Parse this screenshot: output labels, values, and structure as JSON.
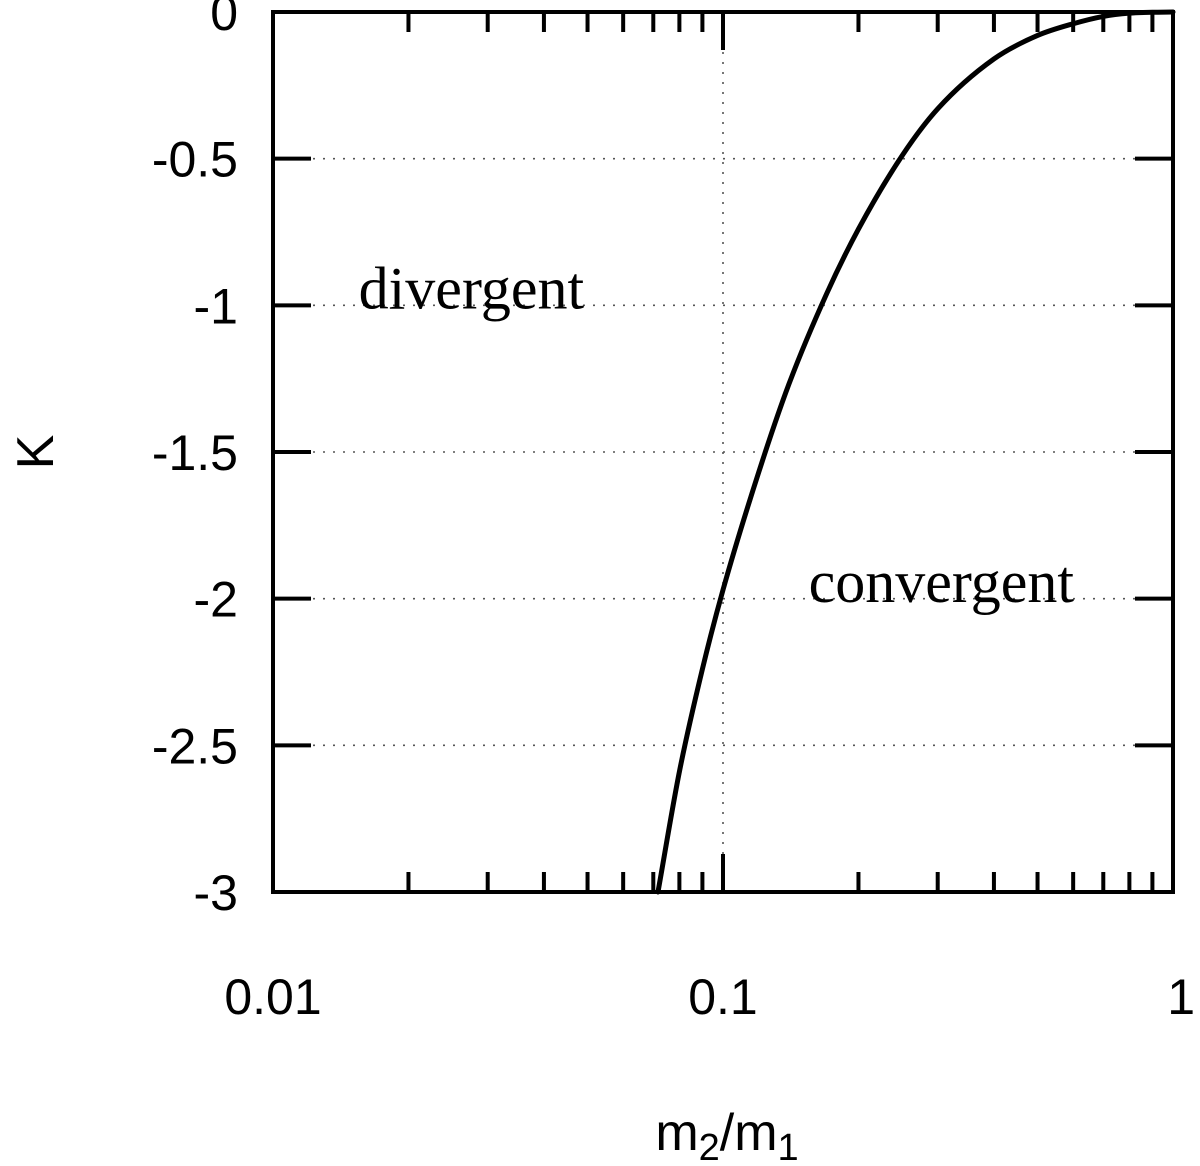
{
  "chart_data": {
    "type": "line",
    "xlabel": {
      "base": "m",
      "sub1": "2",
      "mid": "/m",
      "sub2": "1"
    },
    "ylabel": "K",
    "xscale": "log",
    "xlim": [
      0.01,
      1
    ],
    "ylim": [
      -3,
      0
    ],
    "x_ticks": [
      {
        "value": 0.01,
        "label": "0.01"
      },
      {
        "value": 0.1,
        "label": "0.1"
      },
      {
        "value": 1,
        "label": "1"
      }
    ],
    "y_ticks": [
      {
        "value": 0,
        "label": "0"
      },
      {
        "value": -0.5,
        "label": "-0.5"
      },
      {
        "value": -1,
        "label": "-1"
      },
      {
        "value": -1.5,
        "label": "-1.5"
      },
      {
        "value": -2,
        "label": "-2"
      },
      {
        "value": -2.5,
        "label": "-2.5"
      },
      {
        "value": -3,
        "label": "-3"
      }
    ],
    "grid": true,
    "annotations": [
      {
        "text": "divergent",
        "x": 0.0155,
        "y": -0.95
      },
      {
        "text": "convergent",
        "x": 0.155,
        "y": -1.95
      }
    ],
    "series": [
      {
        "x": [
          0.0717,
          0.08,
          0.09,
          0.1,
          0.12,
          0.14,
          0.17,
          0.2,
          0.25,
          0.3,
          0.4,
          0.5,
          0.6,
          0.7,
          0.8,
          0.9,
          1.0
        ],
        "y": [
          -3.0,
          -2.59,
          -2.24,
          -1.97,
          -1.57,
          -1.27,
          -0.96,
          -0.74,
          -0.49,
          -0.33,
          -0.16,
          -0.08,
          -0.04,
          -0.015,
          -0.004,
          -0.001,
          0.0
        ],
        "color": "#000000"
      }
    ]
  }
}
